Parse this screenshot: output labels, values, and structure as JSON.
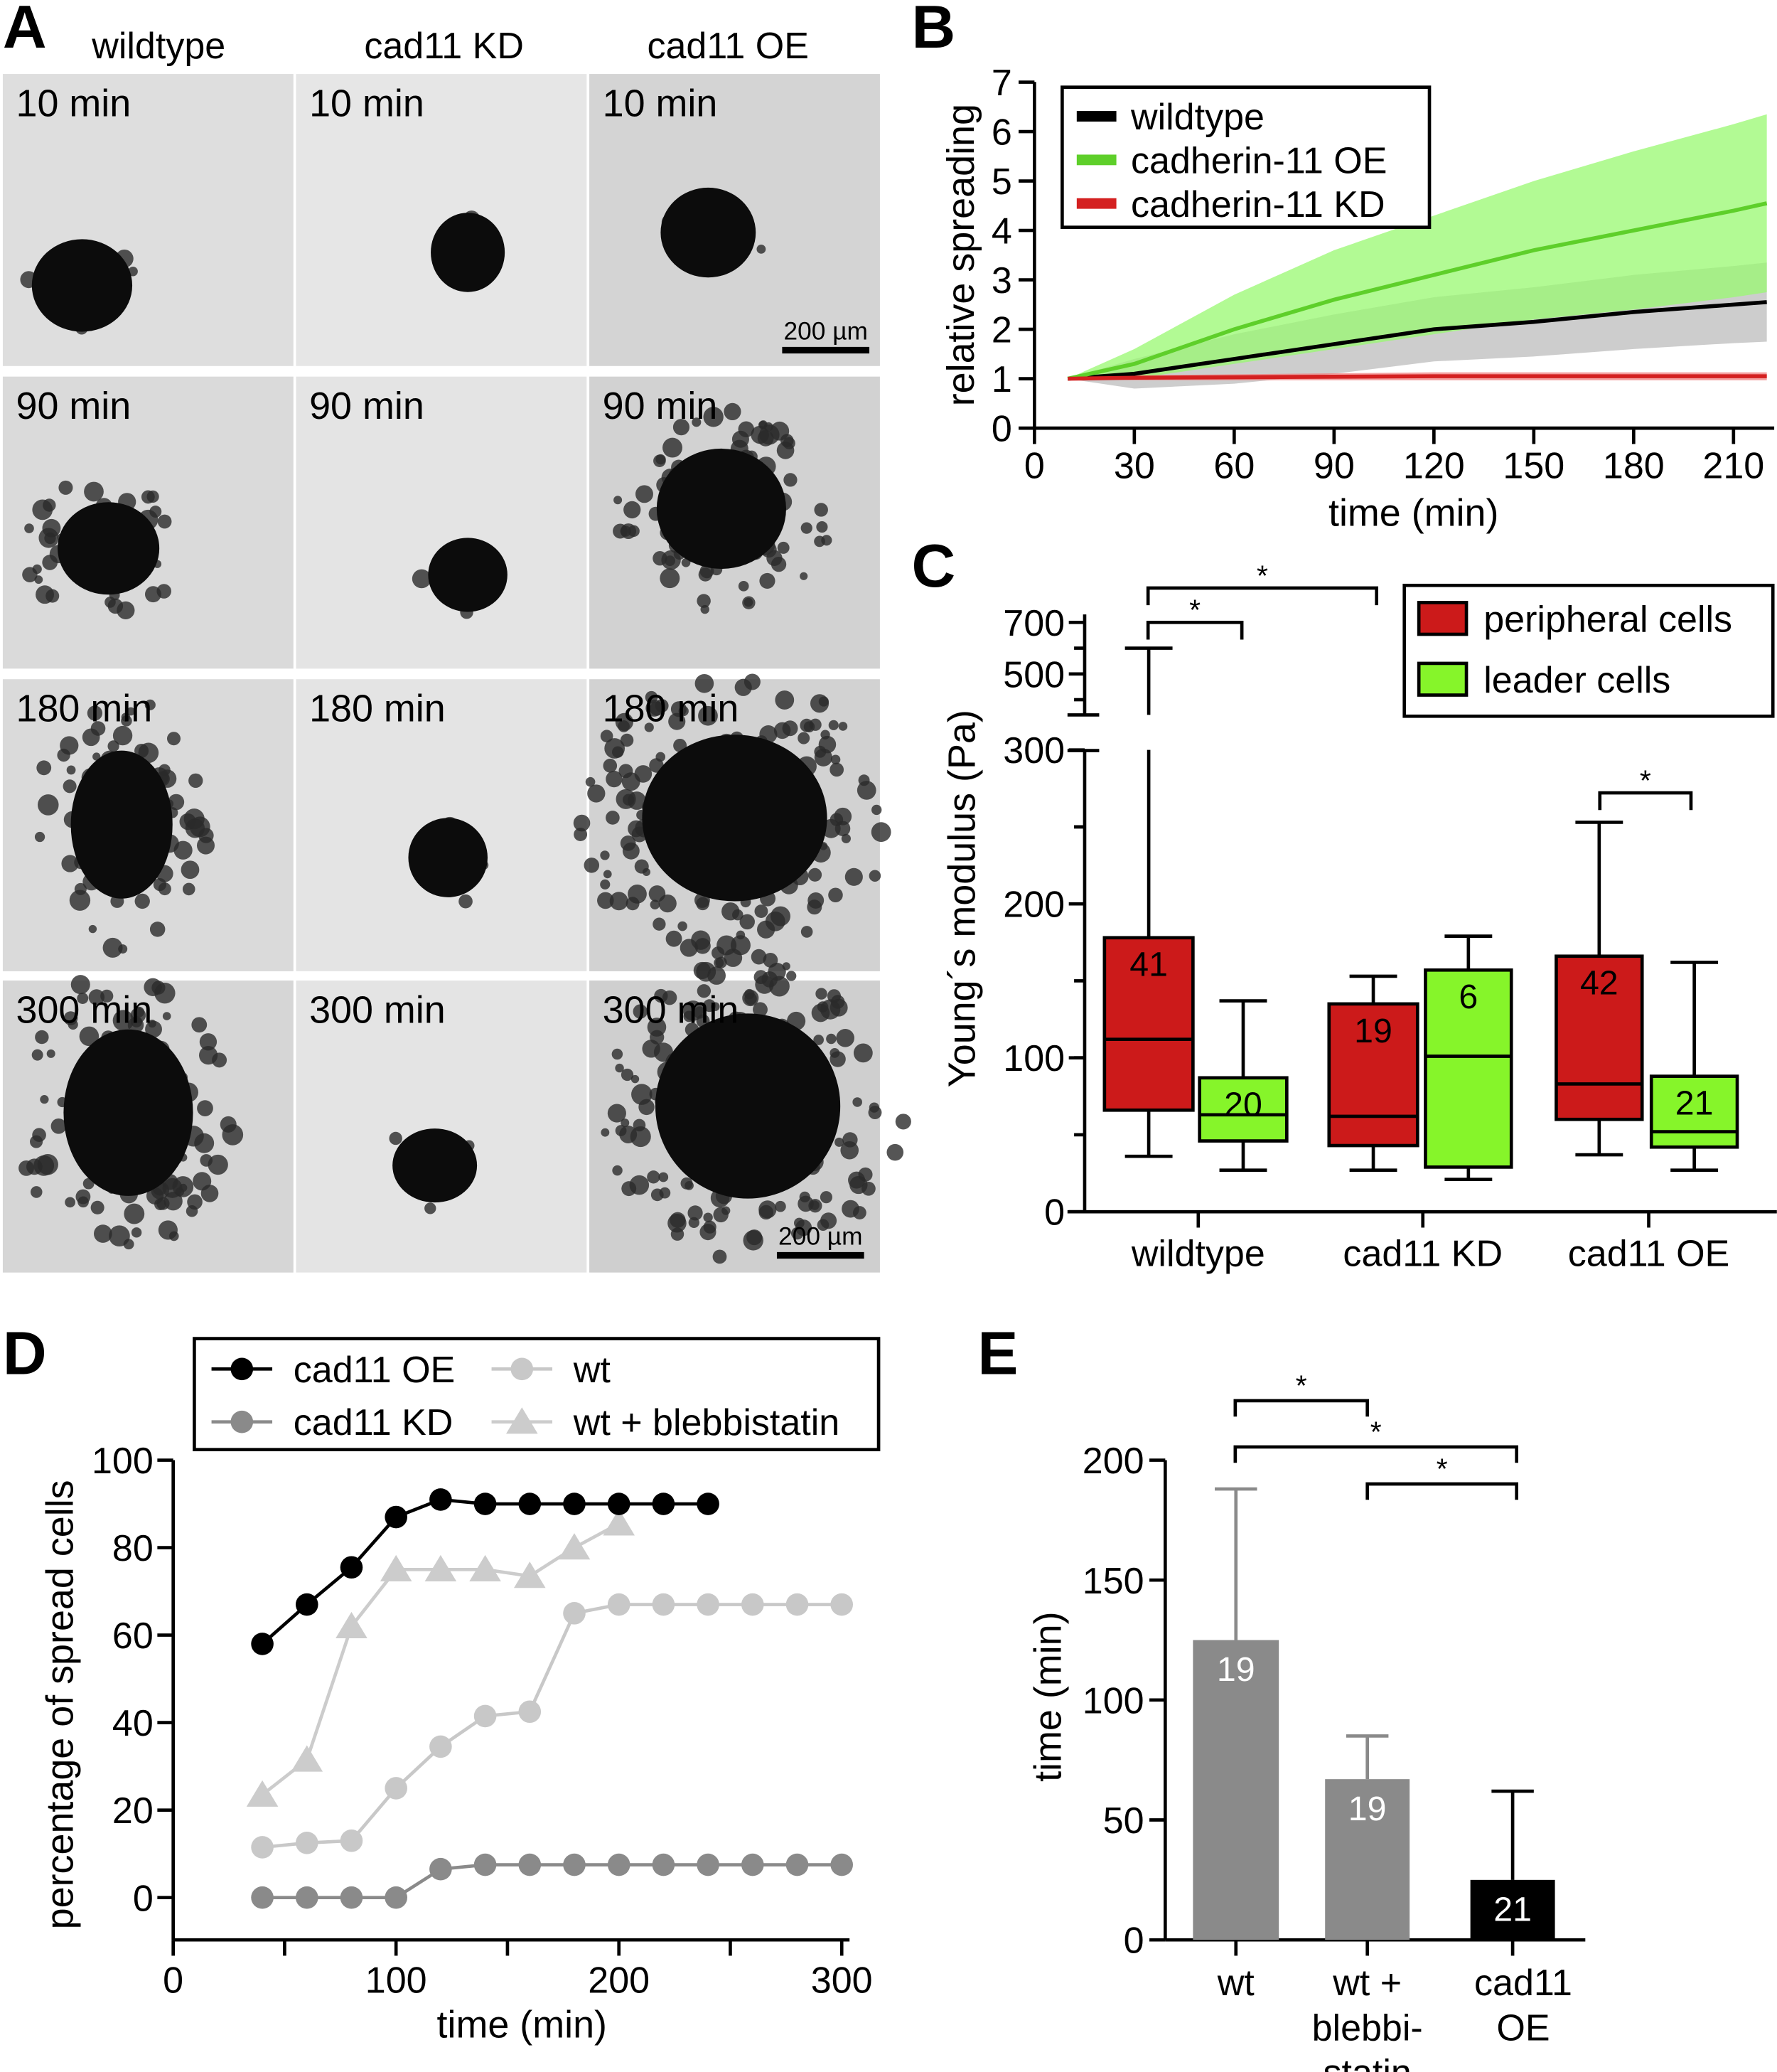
{
  "panel_letters": {
    "a": "A",
    "b": "B",
    "c": "C",
    "d": "D",
    "e": "E"
  },
  "panel_a": {
    "columns": [
      "wildtype",
      "cad11 KD",
      "cad11 OE"
    ],
    "time_labels": [
      "10 min",
      "90 min",
      "180 min",
      "300 min"
    ],
    "scale_bar": "200 µm"
  },
  "chart_data": [
    {
      "id": "B",
      "type": "line",
      "xlabel": "time (min)",
      "ylabel": "relative spreading",
      "xlim": [
        0,
        220
      ],
      "ylim": [
        0,
        7
      ],
      "xticks": [
        0,
        30,
        60,
        90,
        120,
        150,
        180,
        210
      ],
      "yticks": [
        0,
        1,
        2,
        3,
        4,
        5,
        6,
        7
      ],
      "legend_position": "top-left",
      "x": [
        10,
        30,
        60,
        90,
        120,
        150,
        180,
        210,
        220
      ],
      "series": [
        {
          "name": "wildtype",
          "color": "#000000",
          "band_color": "#c8c8c8",
          "mean": [
            1,
            1.1,
            1.4,
            1.7,
            2.0,
            2.15,
            2.35,
            2.5,
            2.55
          ],
          "sd": [
            0,
            0.3,
            0.5,
            0.6,
            0.65,
            0.7,
            0.75,
            0.78,
            0.8
          ]
        },
        {
          "name": "cadherin-11 OE",
          "color": "#5ecf2a",
          "band_color": "#98f870",
          "mean": [
            1,
            1.3,
            2.0,
            2.6,
            3.1,
            3.6,
            4.0,
            4.4,
            4.55
          ],
          "sd": [
            0,
            0.3,
            0.7,
            1.0,
            1.2,
            1.4,
            1.6,
            1.75,
            1.8
          ]
        },
        {
          "name": "cadherin-11 KD",
          "color": "#d42020",
          "band_color": "#f08080",
          "mean": [
            1,
            1.02,
            1.03,
            1.04,
            1.05,
            1.05,
            1.05,
            1.05,
            1.05
          ],
          "sd": [
            0,
            0.05,
            0.06,
            0.07,
            0.08,
            0.08,
            0.08,
            0.08,
            0.08
          ]
        }
      ]
    },
    {
      "id": "C",
      "type": "box",
      "ylabel": "Young´s modulus (Pa)",
      "yticks_lower": [
        0,
        100,
        200,
        300
      ],
      "yticks_upper": [
        500,
        700
      ],
      "categories": [
        "wildtype",
        "cad11 KD",
        "cad11 OE"
      ],
      "legend": [
        {
          "name": "peripheral cells",
          "color": "#cc1a1a"
        },
        {
          "name": "leader cells",
          "color": "#86f52a"
        }
      ],
      "legend_position": "top-right",
      "boxes": [
        {
          "group": 0,
          "series": 0,
          "min": 36,
          "q1": 66,
          "median": 112,
          "q3": 178,
          "max": 600,
          "n": "41"
        },
        {
          "group": 0,
          "series": 1,
          "min": 27,
          "q1": 46,
          "median": 63,
          "q3": 87,
          "max": 137,
          "n": "20"
        },
        {
          "group": 1,
          "series": 0,
          "min": 27,
          "q1": 43,
          "median": 62,
          "q3": 135,
          "max": 153,
          "n": "19"
        },
        {
          "group": 1,
          "series": 1,
          "min": 21,
          "q1": 29,
          "median": 101,
          "q3": 157,
          "max": 179,
          "n": "6"
        },
        {
          "group": 2,
          "series": 0,
          "min": 37,
          "q1": 60,
          "median": 83,
          "q3": 166,
          "max": 253,
          "n": "42"
        },
        {
          "group": 2,
          "series": 1,
          "min": 27,
          "q1": 42,
          "median": 52,
          "q3": 88,
          "max": 162,
          "n": "21"
        }
      ],
      "significance": [
        {
          "from": "wildtype peripheral",
          "to": "wildtype leader",
          "label": "*"
        },
        {
          "from": "wildtype peripheral",
          "to": "cad11 KD peripheral",
          "label": "*"
        },
        {
          "from": "cad11 OE peripheral",
          "to": "cad11 OE leader",
          "label": "*"
        }
      ]
    },
    {
      "id": "D",
      "type": "line",
      "xlabel": "time (min)",
      "ylabel": "percentage of spread cells",
      "xlim": [
        0,
        300
      ],
      "ylim": [
        -10,
        100
      ],
      "xticks": [
        0,
        100,
        200,
        300
      ],
      "yticks": [
        0,
        20,
        40,
        60,
        80,
        100
      ],
      "legend_position": "top",
      "series": [
        {
          "name": "cad11 OE",
          "marker": "circle",
          "color": "#000000",
          "x": [
            40,
            60,
            80,
            100,
            120,
            140,
            160,
            180,
            200,
            220,
            240
          ],
          "y": [
            58,
            67,
            75.5,
            87,
            91,
            90,
            90,
            90,
            90,
            90,
            90
          ]
        },
        {
          "name": "wt",
          "marker": "circle",
          "color": "#c8c8c8",
          "x": [
            40,
            60,
            80,
            100,
            120,
            140,
            160,
            180,
            200,
            220,
            240,
            260,
            280,
            300
          ],
          "y": [
            11.5,
            12.5,
            13,
            25,
            34.5,
            41.5,
            42.5,
            65,
            67,
            67,
            67,
            67,
            67,
            67
          ]
        },
        {
          "name": "cad11 KD",
          "marker": "circle",
          "color": "#8a8a8a",
          "x": [
            40,
            60,
            80,
            100,
            120,
            140,
            160,
            180,
            200,
            220,
            240,
            260,
            280,
            300
          ],
          "y": [
            0,
            0,
            0,
            0,
            6.5,
            7.5,
            7.5,
            7.5,
            7.5,
            7.5,
            7.5,
            7.5,
            7.5,
            7.5
          ]
        },
        {
          "name": "wt + blebbistatin",
          "marker": "triangle",
          "color": "#cccccc",
          "x": [
            40,
            60,
            80,
            100,
            120,
            140,
            160,
            180,
            200
          ],
          "y": [
            23.5,
            31.5,
            62,
            75,
            75,
            75,
            73.5,
            80,
            85.5
          ]
        }
      ]
    },
    {
      "id": "E",
      "type": "bar",
      "ylabel": "time (min)",
      "ylim": [
        0,
        200
      ],
      "yticks": [
        0,
        50,
        100,
        150,
        200
      ],
      "categories": [
        [
          "wt"
        ],
        [
          "wt +",
          "blebbi-",
          "statin"
        ],
        [
          "cad11",
          "OE"
        ]
      ],
      "values": [
        125,
        67,
        25
      ],
      "errors": [
        63,
        18,
        37
      ],
      "n": [
        "19",
        "19",
        "21"
      ],
      "colors": [
        "#8a8a8a",
        "#8a8a8a",
        "#000000"
      ],
      "significance": [
        {
          "from": 0,
          "to": 1,
          "label": "*"
        },
        {
          "from": 0,
          "to": 2,
          "label": "*"
        },
        {
          "from": 1,
          "to": 2,
          "label": "*"
        }
      ]
    }
  ]
}
